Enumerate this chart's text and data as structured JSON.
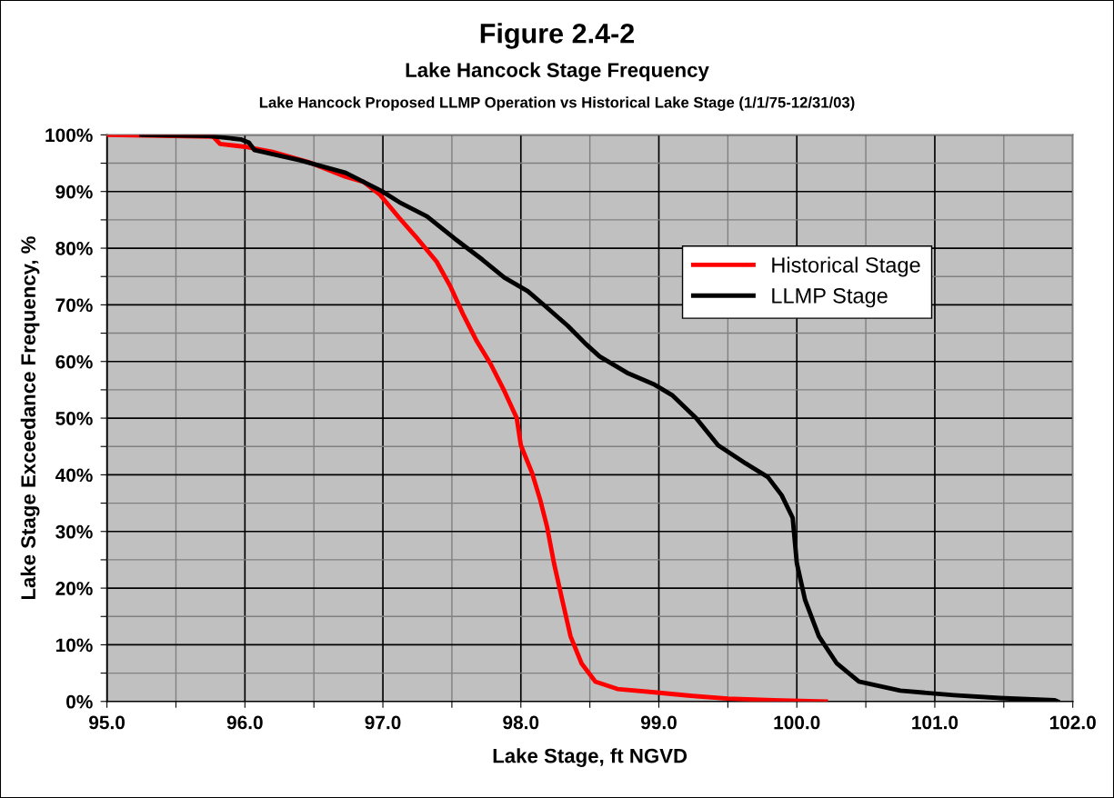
{
  "chart_data": {
    "type": "line",
    "title": "Figure 2.4-2",
    "subtitle": "Lake Hancock Stage Frequency",
    "annotations": [
      "Lake Hancock Proposed LLMP Operation vs Historical Lake Stage (1/1/75-12/31/03)"
    ],
    "xlabel": "Lake Stage, ft NGVD",
    "ylabel": "Lake Stage Exceedance Frequency, %",
    "xlim": [
      95.0,
      102.0
    ],
    "xticks": [
      {
        "value": 95.0,
        "label": "95.0"
      },
      {
        "value": 95.5,
        "label": null
      },
      {
        "value": 96.0,
        "label": "96.0"
      },
      {
        "value": 96.5,
        "label": null
      },
      {
        "value": 97.0,
        "label": "97.0"
      },
      {
        "value": 97.5,
        "label": null
      },
      {
        "value": 98.0,
        "label": "98.0"
      },
      {
        "value": 98.5,
        "label": null
      },
      {
        "value": 99.0,
        "label": "99.0"
      },
      {
        "value": 99.5,
        "label": null
      },
      {
        "value": 100.0,
        "label": "100.0"
      },
      {
        "value": 100.5,
        "label": null
      },
      {
        "value": 101.0,
        "label": "101.0"
      },
      {
        "value": 101.5,
        "label": null
      },
      {
        "value": 102.0,
        "label": "102.0"
      }
    ],
    "ylim": [
      0,
      100
    ],
    "yticks": [
      {
        "value": 0,
        "label": "0%"
      },
      {
        "value": 5,
        "label": null
      },
      {
        "value": 10,
        "label": "10%"
      },
      {
        "value": 15,
        "label": null
      },
      {
        "value": 20,
        "label": "20%"
      },
      {
        "value": 25,
        "label": null
      },
      {
        "value": 30,
        "label": "30%"
      },
      {
        "value": 35,
        "label": null
      },
      {
        "value": 40,
        "label": "40%"
      },
      {
        "value": 45,
        "label": null
      },
      {
        "value": 50,
        "label": "50%"
      },
      {
        "value": 55,
        "label": null
      },
      {
        "value": 60,
        "label": "60%"
      },
      {
        "value": 65,
        "label": null
      },
      {
        "value": 70,
        "label": "70%"
      },
      {
        "value": 75,
        "label": null
      },
      {
        "value": 80,
        "label": "80%"
      },
      {
        "value": 85,
        "label": null
      },
      {
        "value": 90,
        "label": "90%"
      },
      {
        "value": 95,
        "label": null
      },
      {
        "value": 100,
        "label": "100%"
      }
    ],
    "grid": true,
    "legend": "right",
    "marker": "none",
    "line_style": "solid",
    "series": [
      {
        "name": "Historical Stage",
        "color": "#ff0000",
        "x": [
          95.0,
          95.77,
          95.82,
          96.0,
          96.2,
          96.46,
          96.73,
          96.86,
          96.98,
          97.12,
          97.25,
          97.39,
          97.49,
          97.58,
          97.68,
          97.78,
          97.88,
          97.97,
          98.0,
          98.08,
          98.14,
          98.19,
          98.24,
          98.3,
          98.36,
          98.44,
          98.54,
          98.7,
          98.97,
          99.23,
          99.5,
          99.83,
          100.21
        ],
        "values": [
          100,
          99.7,
          98.4,
          97.9,
          97.0,
          95.2,
          92.6,
          91.7,
          89.4,
          85.3,
          81.7,
          77.6,
          73.2,
          68.4,
          63.6,
          59.6,
          54.8,
          50.0,
          45.2,
          40.4,
          35.6,
          30.8,
          24.4,
          17.9,
          11.5,
          6.7,
          3.5,
          2.2,
          1.6,
          1.0,
          0.5,
          0.2,
          0
        ]
      },
      {
        "name": "LLMP Stage",
        "color": "#000000",
        "x": [
          95.25,
          95.74,
          95.97,
          96.03,
          96.07,
          96.4,
          96.73,
          96.99,
          97.12,
          97.32,
          97.52,
          97.72,
          97.88,
          98.05,
          98.18,
          98.34,
          98.47,
          98.57,
          98.77,
          98.97,
          99.1,
          99.27,
          99.43,
          99.63,
          99.79,
          99.89,
          99.97,
          100.0,
          100.06,
          100.16,
          100.29,
          100.45,
          100.75,
          101.14,
          101.47,
          101.87,
          101.89
        ],
        "values": [
          100,
          99.8,
          99.2,
          98.6,
          97.3,
          95.5,
          93.3,
          90.1,
          88.1,
          85.6,
          81.7,
          78.0,
          74.8,
          72.4,
          69.7,
          66.3,
          63.1,
          60.9,
          58.0,
          55.9,
          54.0,
          50.0,
          45.2,
          42.0,
          39.6,
          36.4,
          32.4,
          24.4,
          17.9,
          11.5,
          6.7,
          3.5,
          1.9,
          1.1,
          0.6,
          0.2,
          0
        ]
      }
    ]
  }
}
